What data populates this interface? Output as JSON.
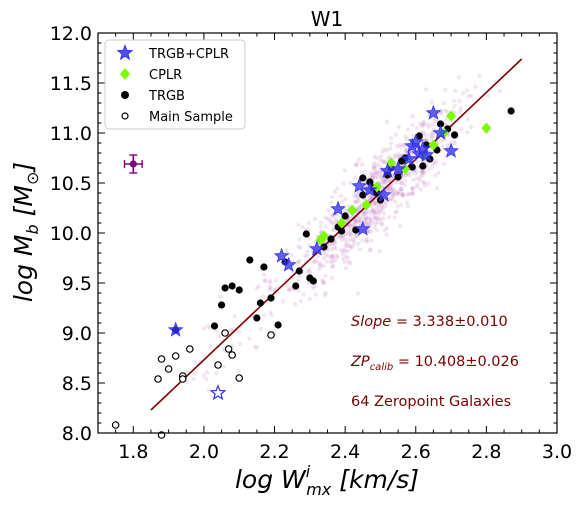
{
  "chart_data": {
    "type": "scatter",
    "title": "W1",
    "xlabel": "log W",
    "xlabel_sup": "i",
    "xlabel_sub": "mx",
    "xlabel_unit": "[km/s]",
    "ylabel": "log M",
    "ylabel_sub": "b",
    "ylabel_unit": "[M",
    "ylabel_unit_symbol": "⊙",
    "ylabel_unit_close": "]",
    "xlim": [
      1.7,
      3.0
    ],
    "ylim": [
      8.0,
      12.0
    ],
    "xticks": [
      "1.8",
      "2.0",
      "2.2",
      "2.4",
      "2.6",
      "2.8",
      "3.0"
    ],
    "yticks": [
      "8.0",
      "8.5",
      "9.0",
      "9.5",
      "10.0",
      "10.5",
      "11.0",
      "11.5",
      "12.0"
    ],
    "legend_position": "top-left",
    "fit_line": {
      "color": "#800000",
      "x": [
        1.85,
        2.9
      ],
      "y": [
        8.23,
        11.74
      ]
    },
    "error_point": {
      "x": 1.8,
      "y": 10.69,
      "xerr": 0.025,
      "yerr": 0.09,
      "color": "#800080"
    },
    "annotations": [
      {
        "label": "Slope",
        "text": " = 3.338±0.010"
      },
      {
        "label": "ZP",
        "label_sub": "calib",
        "text": " = 10.408±0.026"
      },
      {
        "text": "64 Zeropoint Galaxies"
      }
    ],
    "colors": {
      "trgb_cplr": "#3333ee",
      "cplr": "#7cfc00",
      "trgb": "#000000",
      "main": "#000000",
      "cloud": "#b266b2"
    },
    "series": [
      {
        "name": "TRGB+CPLR",
        "marker": "star",
        "x": [
          2.22,
          2.24,
          2.32,
          2.38,
          2.44,
          2.45,
          2.47,
          2.51,
          2.52,
          2.55,
          2.58,
          2.59,
          2.6,
          2.61,
          2.62,
          2.63,
          2.65,
          2.67,
          2.7,
          1.92
        ],
        "y": [
          9.77,
          9.68,
          9.84,
          10.24,
          10.47,
          10.04,
          10.43,
          10.38,
          10.62,
          10.64,
          10.74,
          10.87,
          10.91,
          10.79,
          10.84,
          10.78,
          11.2,
          11.0,
          10.82,
          9.03
        ]
      },
      {
        "name": "CPLR",
        "marker": "diamond",
        "x": [
          2.33,
          2.34,
          2.39,
          2.42,
          2.46,
          2.49,
          2.53,
          2.57,
          2.62,
          2.65,
          2.7,
          2.68,
          2.8
        ],
        "y": [
          9.93,
          9.97,
          10.1,
          10.23,
          10.28,
          10.46,
          10.7,
          10.64,
          10.78,
          10.88,
          11.17,
          11.0,
          11.05
        ]
      },
      {
        "name": "TRGB",
        "marker": "dot",
        "x": [
          1.92,
          2.03,
          2.05,
          2.06,
          2.08,
          2.1,
          2.13,
          2.15,
          2.16,
          2.17,
          2.19,
          2.21,
          2.23,
          2.26,
          2.27,
          2.29,
          2.3,
          2.31,
          2.34,
          2.36,
          2.38,
          2.39,
          2.43,
          2.45,
          2.47,
          2.49,
          2.5,
          2.52,
          2.53,
          2.55,
          2.57,
          2.59,
          2.61,
          2.62,
          2.64,
          2.66,
          2.67,
          2.69,
          2.71,
          2.87,
          2.48,
          2.56,
          2.63,
          2.45,
          2.4
        ],
        "y": [
          9.03,
          9.07,
          9.28,
          9.45,
          9.47,
          9.43,
          9.73,
          9.15,
          9.3,
          9.66,
          9.35,
          9.08,
          9.71,
          9.47,
          9.62,
          9.99,
          9.55,
          9.52,
          9.86,
          9.94,
          10.06,
          10.02,
          10.03,
          10.38,
          10.51,
          10.4,
          10.33,
          10.58,
          10.65,
          10.56,
          10.75,
          10.66,
          10.97,
          10.67,
          10.74,
          10.83,
          11.09,
          11.04,
          10.98,
          11.22,
          10.45,
          10.72,
          10.88,
          10.55,
          10.17
        ]
      },
      {
        "name": "Main Sample",
        "marker": "circle",
        "x": [
          1.75,
          1.87,
          1.88,
          1.9,
          1.92,
          1.94,
          1.94,
          1.96,
          2.04,
          2.06,
          2.07,
          2.08,
          2.1,
          2.19,
          1.88
        ],
        "y": [
          8.08,
          8.54,
          8.74,
          8.64,
          8.77,
          8.57,
          8.54,
          8.84,
          8.68,
          9.0,
          8.84,
          8.78,
          8.55,
          8.98,
          7.98
        ]
      }
    ]
  }
}
